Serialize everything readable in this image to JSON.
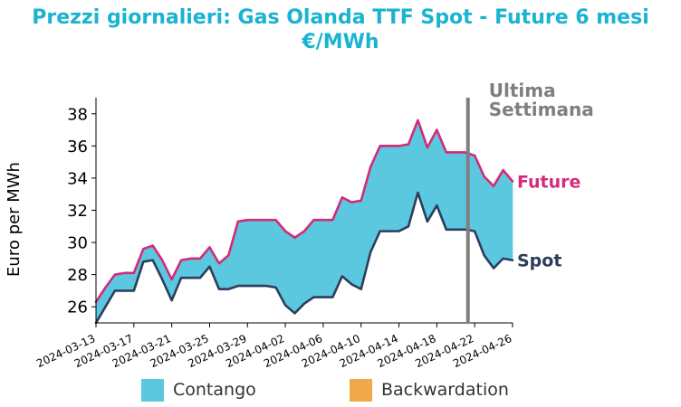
{
  "chart_data": {
    "type": "area",
    "title": [
      "Prezzi giornalieri: Gas Olanda TTF Spot - Future 6 mesi",
      "€/MWh"
    ],
    "ylabel": "Euro per MWh",
    "ylim": [
      25,
      39
    ],
    "yticks": [
      26,
      28,
      30,
      32,
      34,
      36,
      38
    ],
    "xlim": [
      "2024-03-13",
      "2024-04-26"
    ],
    "xticks": [
      "2024-03-13",
      "2024-03-17",
      "2024-03-21",
      "2024-03-25",
      "2024-03-29",
      "2024-04-02",
      "2024-04-06",
      "2024-04-10",
      "2024-04-14",
      "2024-04-18",
      "2024-04-22",
      "2024-04-26"
    ],
    "vline": {
      "date": "2024-04-21",
      "label": [
        "Ultima",
        "Settimana"
      ],
      "color": "#7f7f7f"
    },
    "series": [
      {
        "name": "Future",
        "color": "#d22b78",
        "points": [
          [
            "2024-03-13",
            26.3
          ],
          [
            "2024-03-14",
            27.2
          ],
          [
            "2024-03-15",
            28.0
          ],
          [
            "2024-03-16",
            28.1
          ],
          [
            "2024-03-17",
            28.1
          ],
          [
            "2024-03-18",
            29.6
          ],
          [
            "2024-03-19",
            29.8
          ],
          [
            "2024-03-20",
            28.9
          ],
          [
            "2024-03-21",
            27.7
          ],
          [
            "2024-03-22",
            28.9
          ],
          [
            "2024-03-23",
            29.0
          ],
          [
            "2024-03-24",
            29.0
          ],
          [
            "2024-03-25",
            29.7
          ],
          [
            "2024-03-26",
            28.7
          ],
          [
            "2024-03-27",
            29.2
          ],
          [
            "2024-03-28",
            31.3
          ],
          [
            "2024-03-29",
            31.4
          ],
          [
            "2024-03-30",
            31.4
          ],
          [
            "2024-03-31",
            31.4
          ],
          [
            "2024-04-01",
            31.4
          ],
          [
            "2024-04-02",
            30.7
          ],
          [
            "2024-04-03",
            30.3
          ],
          [
            "2024-04-04",
            30.7
          ],
          [
            "2024-04-05",
            31.4
          ],
          [
            "2024-04-06",
            31.4
          ],
          [
            "2024-04-07",
            31.4
          ],
          [
            "2024-04-08",
            32.8
          ],
          [
            "2024-04-09",
            32.5
          ],
          [
            "2024-04-10",
            32.6
          ],
          [
            "2024-04-11",
            34.7
          ],
          [
            "2024-04-12",
            36.0
          ],
          [
            "2024-04-13",
            36.0
          ],
          [
            "2024-04-14",
            36.0
          ],
          [
            "2024-04-15",
            36.1
          ],
          [
            "2024-04-16",
            37.6
          ],
          [
            "2024-04-17",
            35.9
          ],
          [
            "2024-04-18",
            37.0
          ],
          [
            "2024-04-19",
            35.6
          ],
          [
            "2024-04-20",
            35.6
          ],
          [
            "2024-04-21",
            35.6
          ],
          [
            "2024-04-22",
            35.4
          ],
          [
            "2024-04-23",
            34.1
          ],
          [
            "2024-04-24",
            33.5
          ],
          [
            "2024-04-25",
            34.5
          ],
          [
            "2024-04-26",
            33.8
          ]
        ]
      },
      {
        "name": "Spot",
        "color": "#2c3e5c",
        "points": [
          [
            "2024-03-13",
            25.0
          ],
          [
            "2024-03-14",
            26.0
          ],
          [
            "2024-03-15",
            27.0
          ],
          [
            "2024-03-16",
            27.0
          ],
          [
            "2024-03-17",
            27.0
          ],
          [
            "2024-03-18",
            28.8
          ],
          [
            "2024-03-19",
            28.9
          ],
          [
            "2024-03-20",
            27.7
          ],
          [
            "2024-03-21",
            26.4
          ],
          [
            "2024-03-22",
            27.8
          ],
          [
            "2024-03-23",
            27.8
          ],
          [
            "2024-03-24",
            27.8
          ],
          [
            "2024-03-25",
            28.5
          ],
          [
            "2024-03-26",
            27.1
          ],
          [
            "2024-03-27",
            27.1
          ],
          [
            "2024-03-28",
            27.3
          ],
          [
            "2024-03-29",
            27.3
          ],
          [
            "2024-03-30",
            27.3
          ],
          [
            "2024-03-31",
            27.3
          ],
          [
            "2024-04-01",
            27.2
          ],
          [
            "2024-04-02",
            26.1
          ],
          [
            "2024-04-03",
            25.6
          ],
          [
            "2024-04-04",
            26.2
          ],
          [
            "2024-04-05",
            26.6
          ],
          [
            "2024-04-06",
            26.6
          ],
          [
            "2024-04-07",
            26.6
          ],
          [
            "2024-04-08",
            27.9
          ],
          [
            "2024-04-09",
            27.4
          ],
          [
            "2024-04-10",
            27.1
          ],
          [
            "2024-04-11",
            29.4
          ],
          [
            "2024-04-12",
            30.7
          ],
          [
            "2024-04-13",
            30.7
          ],
          [
            "2024-04-14",
            30.7
          ],
          [
            "2024-04-15",
            31.0
          ],
          [
            "2024-04-16",
            33.1
          ],
          [
            "2024-04-17",
            31.3
          ],
          [
            "2024-04-18",
            32.3
          ],
          [
            "2024-04-19",
            30.8
          ],
          [
            "2024-04-20",
            30.8
          ],
          [
            "2024-04-21",
            30.8
          ],
          [
            "2024-04-22",
            30.7
          ],
          [
            "2024-04-23",
            29.2
          ],
          [
            "2024-04-24",
            28.4
          ],
          [
            "2024-04-25",
            29.0
          ],
          [
            "2024-04-26",
            28.9
          ]
        ]
      }
    ],
    "fill": [
      {
        "name": "Contango",
        "color": "#5bc8df"
      },
      {
        "name": "Backwardation",
        "color": "#efa94a"
      }
    ]
  }
}
